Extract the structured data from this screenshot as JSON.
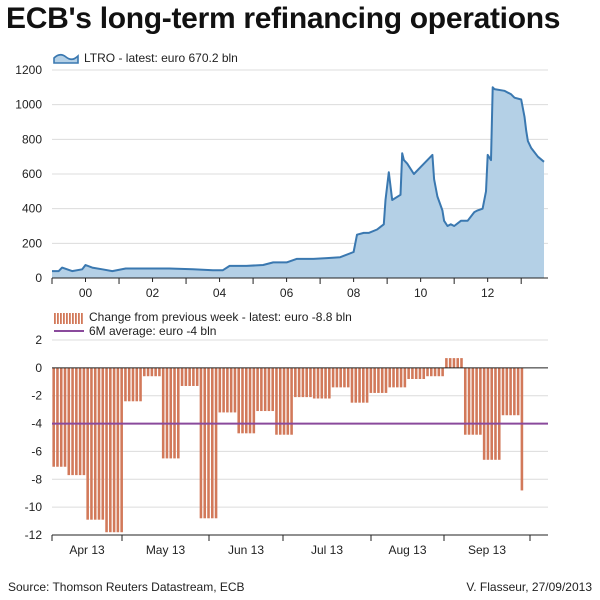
{
  "title": "ECB's long-term refinancing operations",
  "footer": {
    "source": "Source: Thomson Reuters Datastream, ECB",
    "credit": "V. Flasseur, 27/09/2013"
  },
  "colors": {
    "area_fill": "#b4d0e6",
    "area_line": "#3a78b0",
    "bar": "#d2795a",
    "average": "#8a4a9c",
    "grid": "#dcdcdc",
    "axis": "#222222"
  },
  "chart_data": [
    {
      "type": "area",
      "legend": "LTRO - latest: euro 670.2 bln",
      "x_ticks": [
        "00",
        "02",
        "04",
        "06",
        "08",
        "10",
        "12"
      ],
      "x_range": [
        1999.0,
        2013.8
      ],
      "ylim": [
        0,
        1200
      ],
      "y_ticks": [
        0,
        200,
        400,
        600,
        800,
        1000,
        1200
      ],
      "grid": true,
      "x": [
        1999.0,
        1999.2,
        1999.3,
        1999.6,
        1999.9,
        2000.0,
        2000.2,
        2000.5,
        2000.8,
        2001.2,
        2001.7,
        2002.5,
        2003.2,
        2003.8,
        2004.1,
        2004.3,
        2004.8,
        2005.3,
        2005.6,
        2006.0,
        2006.3,
        2006.8,
        2007.2,
        2007.6,
        2008.0,
        2008.1,
        2008.3,
        2008.45,
        2008.7,
        2008.9,
        2008.95,
        2009.05,
        2009.15,
        2009.4,
        2009.45,
        2009.5,
        2009.6,
        2009.8,
        2010.0,
        2010.3,
        2010.35,
        2010.4,
        2010.5,
        2010.65,
        2010.7,
        2010.8,
        2010.9,
        2011.0,
        2011.2,
        2011.4,
        2011.6,
        2011.7,
        2011.85,
        2011.95,
        2012.0,
        2012.1,
        2012.15,
        2012.2,
        2012.5,
        2012.7,
        2012.8,
        2013.0,
        2013.1,
        2013.15,
        2013.2,
        2013.3,
        2013.5,
        2013.68
      ],
      "y": [
        40,
        40,
        60,
        40,
        50,
        75,
        60,
        50,
        40,
        55,
        55,
        55,
        50,
        45,
        45,
        70,
        70,
        75,
        90,
        90,
        110,
        110,
        115,
        120,
        150,
        250,
        260,
        260,
        280,
        310,
        450,
        610,
        450,
        480,
        720,
        680,
        660,
        600,
        640,
        700,
        710,
        570,
        470,
        390,
        330,
        300,
        310,
        300,
        330,
        330,
        380,
        390,
        400,
        500,
        710,
        680,
        1100,
        1090,
        1080,
        1060,
        1040,
        1030,
        930,
        850,
        790,
        750,
        700,
        670.2
      ]
    },
    {
      "type": "bar",
      "legend": "Change from previous week - latest: euro -8.8 bln",
      "average_legend": "6M average: euro -4 bln",
      "average": -4,
      "x_ticks": [
        "Apr 13",
        "May 13",
        "Jun 13",
        "Jul 13",
        "Aug 13",
        "Sep 13"
      ],
      "ylim": [
        -12,
        2
      ],
      "y_ticks": [
        2,
        0,
        -2,
        -4,
        -6,
        -8,
        -10,
        -12
      ],
      "grid": true,
      "values": [
        -7.1,
        -7.1,
        -7.1,
        -7.1,
        -7.7,
        -7.7,
        -7.7,
        -7.7,
        -7.7,
        -10.9,
        -10.9,
        -10.9,
        -10.9,
        -10.9,
        -11.8,
        -11.8,
        -11.8,
        -11.8,
        -11.8,
        -2.4,
        -2.4,
        -2.4,
        -2.4,
        -2.4,
        -0.6,
        -0.6,
        -0.6,
        -0.6,
        -0.6,
        -6.5,
        -6.5,
        -6.5,
        -6.5,
        -6.5,
        -1.3,
        -1.3,
        -1.3,
        -1.3,
        -1.3,
        -10.8,
        -10.8,
        -10.8,
        -10.8,
        -10.8,
        -3.2,
        -3.2,
        -3.2,
        -3.2,
        -3.2,
        -4.7,
        -4.7,
        -4.7,
        -4.7,
        -4.7,
        -3.1,
        -3.1,
        -3.1,
        -3.1,
        -3.1,
        -4.8,
        -4.8,
        -4.8,
        -4.8,
        -4.8,
        -2.1,
        -2.1,
        -2.1,
        -2.1,
        -2.1,
        -2.2,
        -2.2,
        -2.2,
        -2.2,
        -2.2,
        -1.4,
        -1.4,
        -1.4,
        -1.4,
        -1.4,
        -2.5,
        -2.5,
        -2.5,
        -2.5,
        -2.5,
        -1.8,
        -1.8,
        -1.8,
        -1.8,
        -1.8,
        -1.4,
        -1.4,
        -1.4,
        -1.4,
        -1.4,
        -0.8,
        -0.8,
        -0.8,
        -0.8,
        -0.8,
        -0.6,
        -0.6,
        -0.6,
        -0.6,
        -0.6,
        0.7,
        0.7,
        0.7,
        0.7,
        0.7,
        -4.8,
        -4.8,
        -4.8,
        -4.8,
        -4.8,
        -6.6,
        -6.6,
        -6.6,
        -6.6,
        -6.6,
        -3.4,
        -3.4,
        -3.4,
        -3.4,
        -3.4,
        -8.8
      ]
    }
  ]
}
